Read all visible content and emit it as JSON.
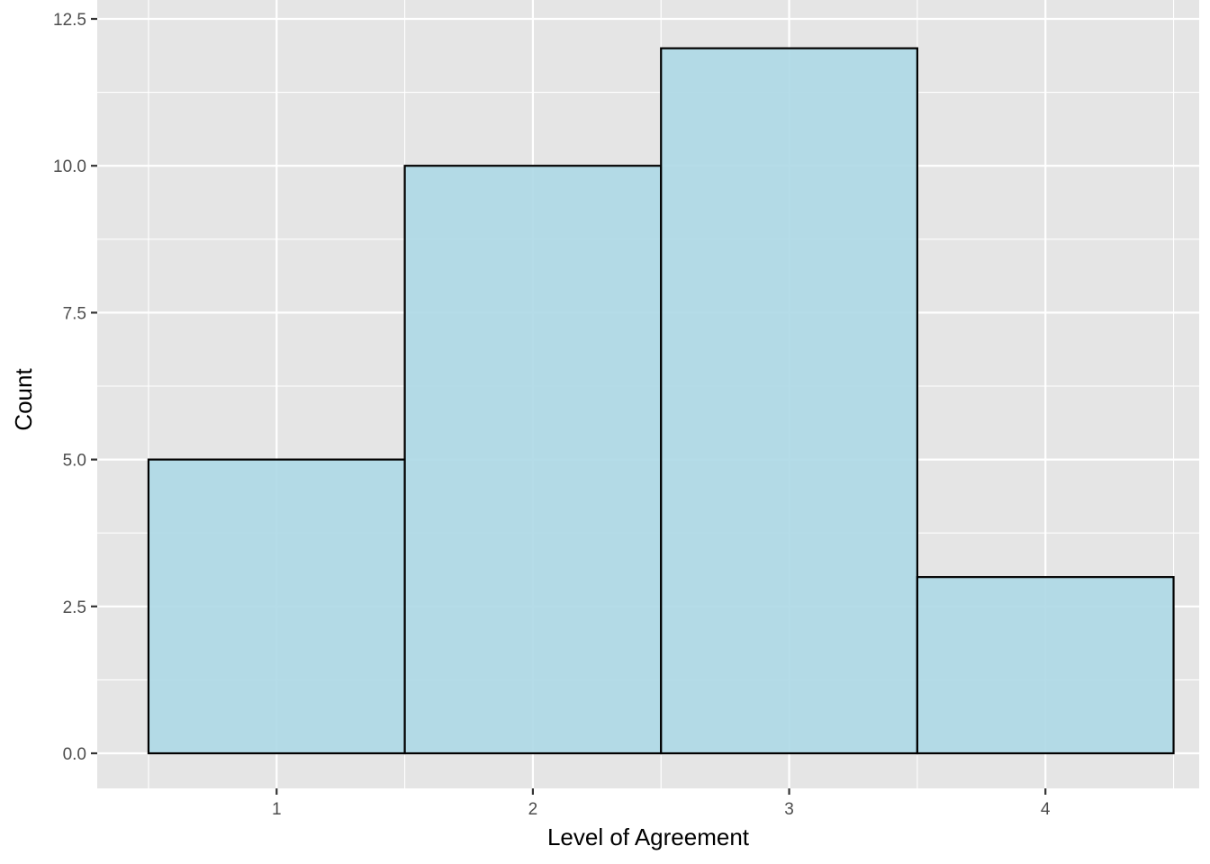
{
  "chart_data": {
    "type": "bar",
    "categories": [
      "1",
      "2",
      "3",
      "4"
    ],
    "values": [
      5,
      10,
      12,
      3
    ],
    "xlabel": "Level of Agreement",
    "ylabel": "Count",
    "ylim": [
      -0.6,
      12.5
    ],
    "xlim": [
      0.3,
      4.6
    ],
    "yticks": [
      0,
      2.5,
      5,
      7.5,
      10,
      12.5
    ],
    "ytick_labels": [
      "0.0",
      "2.5",
      "5.0",
      "7.5",
      "10.0",
      "12.5"
    ],
    "xticks": [
      1,
      2,
      3,
      4
    ],
    "xtick_labels": [
      "1",
      "2",
      "3",
      "4"
    ],
    "grid": true,
    "colors": {
      "panel": "#e5e5e5",
      "grid": "#ffffff",
      "bar_fill": "#add8e6",
      "bar_fill_opacity": 0.9,
      "bar_stroke": "#000000",
      "tick_text": "#4d4d4d",
      "axis_title": "#000000"
    }
  }
}
